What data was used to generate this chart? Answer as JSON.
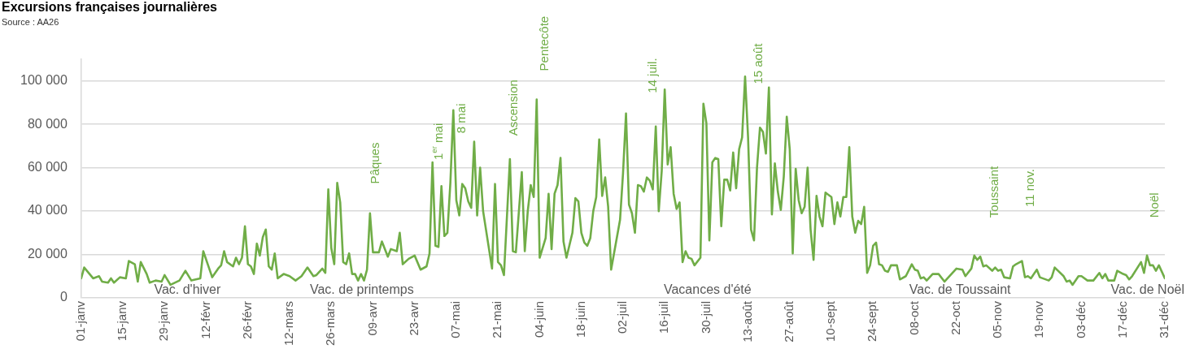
{
  "chart_data": {
    "type": "line",
    "title": "Excursions françaises journalières",
    "annotations": [
      "Source : AA26",
      "Vac. d'hiver",
      "Vac. de printemps",
      "Vacances d'été",
      "Vac. de Toussaint",
      "Vac. de Noël",
      "Pâques",
      "1$^{er}$ mai",
      "8 mai",
      "Ascension",
      "Pentecôte",
      "14 juil.",
      "15 août",
      "Toussaint",
      "11 nov.",
      "Noël"
    ],
    "x": [
      "--01-01",
      "--01-02",
      "--01-05",
      "--01-07",
      "--01-08",
      "--01-10",
      "--01-11",
      "--01-12",
      "--01-14",
      "--01-16",
      "--01-17",
      "--01-19",
      "--01-20",
      "--01-21",
      "--01-23",
      "--01-24",
      "--01-26",
      "--01-28",
      "--01-29",
      "--01-31",
      "--02-03",
      "--02-05",
      "--02-07",
      "--02-10",
      "--02-11",
      "--02-13",
      "--02-14",
      "--02-16",
      "--02-17",
      "--02-18",
      "--02-19",
      "--02-21",
      "--02-22",
      "--02-23",
      "--02-24",
      "--02-25",
      "--02-26",
      "--02-27",
      "--02-28",
      "--03-01",
      "--03-02",
      "--03-03",
      "--03-04",
      "--03-05",
      "--03-06",
      "--03-07",
      "--03-08",
      "--03-10",
      "--03-12",
      "--03-14",
      "--03-16",
      "--03-18",
      "--03-20",
      "--03-21",
      "--03-23",
      "--03-24",
      "--03-25",
      "--03-26",
      "--03-27",
      "--03-28",
      "--03-29",
      "--03-30",
      "--03-31",
      "--04-01",
      "--04-02",
      "--04-03",
      "--04-04",
      "--04-05",
      "--04-06",
      "--04-07",
      "--04-08",
      "--04-09",
      "--04-11",
      "--04-12",
      "--04-14",
      "--04-15",
      "--04-17",
      "--04-18",
      "--04-19",
      "--04-21",
      "--04-23",
      "--04-25",
      "--04-27",
      "--04-28",
      "--04-29",
      "--04-30",
      "--05-01",
      "--05-02",
      "--05-03",
      "--05-04",
      "--05-05",
      "--05-06",
      "--05-07",
      "--05-08",
      "--05-09",
      "--05-10",
      "--05-11",
      "--05-12",
      "--05-13",
      "--05-14",
      "--05-15",
      "--05-16",
      "--05-19",
      "--05-20",
      "--05-21",
      "--05-22",
      "--05-23",
      "--05-25",
      "--05-26",
      "--05-27",
      "--05-29",
      "--05-30",
      "--05-31",
      "--06-01",
      "--06-02",
      "--06-03",
      "--06-04",
      "--06-06",
      "--06-07",
      "--06-08",
      "--06-09",
      "--06-10",
      "--06-11",
      "--06-12",
      "--06-13",
      "--06-15",
      "--06-16",
      "--06-17",
      "--06-18",
      "--06-19",
      "--06-20",
      "--06-21",
      "--06-22",
      "--06-23",
      "--06-24",
      "--06-25",
      "--06-26",
      "--06-27",
      "--06-28",
      "--07-01",
      "--07-02",
      "--07-03",
      "--07-04",
      "--07-05",
      "--07-06",
      "--07-07",
      "--07-08",
      "--07-09",
      "--07-10",
      "--07-11",
      "--07-12",
      "--07-13",
      "--07-14",
      "--07-15",
      "--07-16",
      "--07-17",
      "--07-18",
      "--07-19",
      "--07-20",
      "--07-21",
      "--07-22",
      "--07-23",
      "--07-24",
      "--07-25",
      "--07-26",
      "--07-28",
      "--07-29",
      "--07-30",
      "--07-31",
      "--08-01",
      "--08-02",
      "--08-03",
      "--08-04",
      "--08-05",
      "--08-06",
      "--08-07",
      "--08-08",
      "--08-09",
      "--08-10",
      "--08-11",
      "--08-12",
      "--08-13",
      "--08-14",
      "--08-15",
      "--08-16",
      "--08-17",
      "--08-18",
      "--08-19",
      "--08-20",
      "--08-21",
      "--08-22",
      "--08-23",
      "--08-24",
      "--08-25",
      "--08-26",
      "--08-27",
      "--08-28",
      "--08-29",
      "--08-30",
      "--08-31",
      "--09-01",
      "--09-02",
      "--09-03",
      "--09-04",
      "--09-05",
      "--09-06",
      "--09-07",
      "--09-08",
      "--09-10",
      "--09-11",
      "--09-12",
      "--09-13",
      "--09-14",
      "--09-15",
      "--09-16",
      "--09-17",
      "--09-18",
      "--09-19",
      "--09-20",
      "--09-21",
      "--09-22",
      "--09-23",
      "--09-24",
      "--09-25",
      "--09-26",
      "--09-27",
      "--09-28",
      "--09-29",
      "--09-30",
      "--10-02",
      "--10-03",
      "--10-05",
      "--10-07",
      "--10-08",
      "--10-09",
      "--10-10",
      "--10-11",
      "--10-12",
      "--10-14",
      "--10-16",
      "--10-18",
      "--10-22",
      "--10-24",
      "--10-25",
      "--10-27",
      "--10-28",
      "--10-29",
      "--10-30",
      "--10-31",
      "--11-01",
      "--11-03",
      "--11-04",
      "--11-05",
      "--11-06",
      "--11-07",
      "--11-09",
      "--11-10",
      "--11-11",
      "--11-13",
      "--11-14",
      "--11-15",
      "--11-16",
      "--11-18",
      "--11-19",
      "--11-22",
      "--11-23",
      "--11-24",
      "--11-27",
      "--11-28",
      "--11-29",
      "--11-30",
      "--12-02",
      "--12-03",
      "--12-05",
      "--12-07",
      "--12-09",
      "--12-10",
      "--12-11",
      "--12-12",
      "--12-14",
      "--12-15",
      "--12-17",
      "--12-18",
      "--12-19",
      "--12-20",
      "--12-23",
      "--12-24",
      "--12-25",
      "--12-26",
      "--12-27",
      "--12-28",
      "--12-29",
      "--12-31"
    ],
    "series": [
      {
        "color": "#70ad47",
        "line_style": "solid",
        "values": [
          9000,
          14000,
          9000,
          10000,
          7500,
          7000,
          9000,
          7000,
          9500,
          9000,
          17000,
          15500,
          7500,
          16500,
          11000,
          7000,
          8000,
          7500,
          10500,
          6000,
          8000,
          12500,
          8000,
          9000,
          21500,
          13500,
          9500,
          13500,
          15000,
          21500,
          16500,
          14500,
          18500,
          15500,
          18500,
          33000,
          15500,
          14500,
          11000,
          25000,
          19500,
          28000,
          31500,
          14500,
          13000,
          20500,
          9000,
          11000,
          10000,
          8000,
          10000,
          14000,
          10000,
          10500,
          13500,
          11500,
          50000,
          23000,
          15500,
          53000,
          44000,
          16500,
          15500,
          20500,
          11000,
          11000,
          8000,
          11000,
          8000,
          13000,
          39000,
          21000,
          21000,
          26000,
          19000,
          22500,
          21500,
          30000,
          15500,
          18000,
          19500,
          13000,
          14500,
          20500,
          62500,
          24000,
          23500,
          51500,
          28500,
          30000,
          53000,
          86500,
          45000,
          38000,
          52500,
          50500,
          44500,
          41500,
          72000,
          38000,
          60000,
          40000,
          13500,
          52500,
          16500,
          15000,
          10500,
          64000,
          21500,
          21000,
          58000,
          21500,
          40000,
          52000,
          46500,
          91500,
          18500,
          27500,
          48000,
          22500,
          48000,
          52000,
          64500,
          26000,
          18500,
          30000,
          46000,
          44500,
          30000,
          25500,
          24000,
          27500,
          40000,
          46500,
          73000,
          47000,
          55500,
          42000,
          13000,
          36000,
          57500,
          85000,
          43000,
          39000,
          30000,
          52000,
          51500,
          49000,
          55500,
          54000,
          50000,
          79000,
          40000,
          58500,
          96000,
          61500,
          69500,
          48000,
          41000,
          44000,
          16500,
          21500,
          18500,
          18000,
          15000,
          18500,
          89500,
          80500,
          26500,
          62500,
          64500,
          64000,
          33000,
          54500,
          54500,
          49500,
          67000,
          50500,
          68500,
          74000,
          102000,
          74000,
          31500,
          26500,
          60000,
          78500,
          76500,
          66500,
          97000,
          38500,
          62000,
          49000,
          40500,
          56000,
          83500,
          68500,
          20500,
          59500,
          45000,
          39000,
          42000,
          60000,
          31500,
          17500,
          47000,
          37500,
          33000,
          48500,
          46500,
          34000,
          44000,
          37500,
          46500,
          46500,
          69500,
          37500,
          30000,
          35500,
          34000,
          42000,
          11500,
          15000,
          24000,
          25500,
          15500,
          15000,
          12500,
          12000,
          15000,
          15000,
          8500,
          10000,
          15500,
          13000,
          12500,
          9000,
          9500,
          8000,
          11000,
          11000,
          7500,
          13500,
          13000,
          10000,
          13500,
          19500,
          17500,
          19000,
          14500,
          15000,
          12500,
          14000,
          12500,
          13000,
          9500,
          9000,
          14500,
          15500,
          17000,
          9500,
          10000,
          9000,
          13000,
          9500,
          8000,
          9500,
          14000,
          10000,
          7500,
          8000,
          6000,
          10000,
          10000,
          8000,
          8000,
          11500,
          9000,
          11000,
          8000,
          8000,
          12500,
          11000,
          10500,
          8500,
          10000,
          16500,
          11500,
          19500,
          15000,
          15000,
          12500,
          15000,
          9000
        ]
      }
    ],
    "xlim": [
      "--01-01",
      "--12-31"
    ],
    "xticks": [
      {
        "value": "--01-01",
        "label": "01-janv"
      },
      {
        "value": "--01-15",
        "label": "15-janv"
      },
      {
        "value": "--01-29",
        "label": "29-janv"
      },
      {
        "value": "--02-12",
        "label": "12-févr"
      },
      {
        "value": "--02-26",
        "label": "26-févr"
      },
      {
        "value": "--03-12",
        "label": "12-mars"
      },
      {
        "value": "--03-26",
        "label": "26-mars"
      },
      {
        "value": "--04-09",
        "label": "09-avr"
      },
      {
        "value": "--04-23",
        "label": "23-avr"
      },
      {
        "value": "--05-07",
        "label": "07-mai"
      },
      {
        "value": "--05-21",
        "label": "21-mai"
      },
      {
        "value": "--06-04",
        "label": "04-juin"
      },
      {
        "value": "--06-18",
        "label": "18-juin"
      },
      {
        "value": "--07-02",
        "label": "02-juil"
      },
      {
        "value": "--07-16",
        "label": "16-juil"
      },
      {
        "value": "--07-30",
        "label": "30-juil"
      },
      {
        "value": "--08-13",
        "label": "13-août"
      },
      {
        "value": "--08-27",
        "label": "27-août"
      },
      {
        "value": "--09-10",
        "label": "10-sept"
      },
      {
        "value": "--09-24",
        "label": "24-sept"
      },
      {
        "value": "--10-08",
        "label": "08-oct"
      },
      {
        "value": "--10-22",
        "label": "22-oct"
      },
      {
        "value": "--11-05",
        "label": "05-nov"
      },
      {
        "value": "--11-19",
        "label": "19-nov"
      },
      {
        "value": "--12-03",
        "label": "03-déc"
      },
      {
        "value": "--12-17",
        "label": "17-déc"
      },
      {
        "value": "--12-31",
        "label": "31-déc"
      }
    ],
    "ylim": [
      0,
      110000
    ],
    "yticks": [
      0,
      {
        "value": 20000,
        "label": "20 000"
      },
      {
        "value": 40000,
        "label": "40 000"
      },
      {
        "value": 60000,
        "label": "60 000"
      },
      {
        "value": 80000,
        "label": "80 000"
      },
      {
        "value": 100000,
        "label": "100 000"
      }
    ],
    "grid": "y",
    "legend": false
  }
}
